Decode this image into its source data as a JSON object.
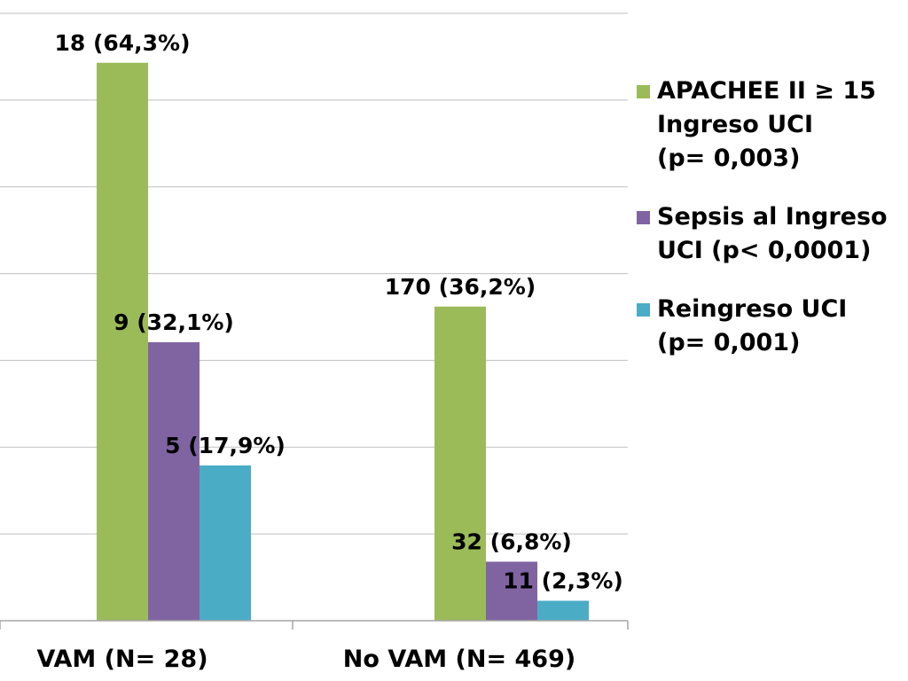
{
  "chart_data": {
    "type": "bar",
    "categories": [
      "VAM (N= 28)",
      "No VAM (N= 469)"
    ],
    "series": [
      {
        "name": "APACHEE II ≥ 15\nIngreso UCI\n(p= 0,003)",
        "color": "#9BBB59",
        "values": [
          64.3,
          36.2
        ],
        "labels": [
          "18 (64,3%)",
          "170 (36,2%)"
        ]
      },
      {
        "name": "Sepsis al Ingreso\nUCI (p< 0,0001)",
        "color": "#8064A2",
        "values": [
          32.1,
          6.8
        ],
        "labels": [
          "9 (32,1%)",
          "32 (6,8%)"
        ]
      },
      {
        "name": "Reingreso UCI\n(p= 0,001)",
        "color": "#4BACC6",
        "values": [
          17.9,
          2.3
        ],
        "labels": [
          "5 (17,9%)",
          "11 (2,3%)"
        ]
      }
    ],
    "ylim": [
      0,
      70
    ],
    "grid": true,
    "legend": "right"
  }
}
